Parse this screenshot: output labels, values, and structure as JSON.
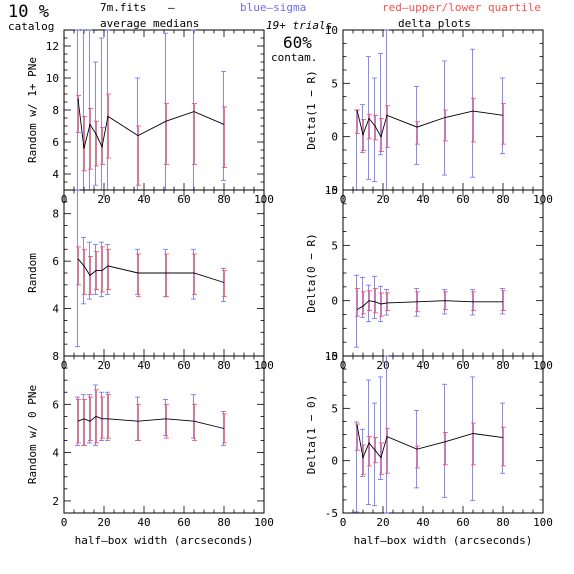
{
  "header": {
    "left_big": "10 %",
    "left_small": "catalog",
    "file": "7m.fits",
    "dash": "–",
    "avg": "average medians",
    "blue": "blue–sigma",
    "red": "red–upper/lower quartile",
    "trials": "19+ trials",
    "contam_big": "60%",
    "contam_small": "contam.",
    "delta": "delta plots"
  },
  "colors": {
    "median": "#000000",
    "sigma": "#6b6bff",
    "quartile": "#ff4d4d"
  },
  "xlabel": "half–box width (arcseconds)",
  "chart_data": [
    {
      "type": "line",
      "panel": "left-top",
      "ylabel": "Random w/ 1+ PNe",
      "xlim": [
        0,
        100
      ],
      "ylim": [
        3,
        13
      ],
      "xticks": [
        0,
        20,
        40,
        60,
        80,
        100
      ],
      "yticks": [
        4,
        6,
        8,
        10,
        12
      ],
      "show_xticklabels": true,
      "show_xlabel": false,
      "x": [
        7,
        10,
        13,
        16,
        19,
        22,
        37,
        51,
        65,
        80
      ],
      "median": [
        8.7,
        5.6,
        7.1,
        6.5,
        5.7,
        7.6,
        6.4,
        7.3,
        7.9,
        7.1
      ],
      "sigma_lo": [
        3.0,
        3.0,
        3.0,
        3.3,
        3.0,
        3.0,
        3.0,
        3.0,
        3.0,
        3.6
      ],
      "sigma_hi": [
        13.0,
        13.0,
        13.0,
        11.0,
        12.5,
        13.0,
        10.0,
        12.8,
        13.0,
        10.4
      ],
      "q_lo": [
        6.6,
        4.2,
        4.3,
        4.5,
        4.6,
        5.0,
        3.3,
        4.6,
        4.6,
        4.4
      ],
      "q_hi": [
        8.9,
        7.6,
        8.1,
        7.3,
        6.9,
        9.0,
        7.0,
        8.4,
        8.4,
        8.2
      ]
    },
    {
      "type": "line",
      "panel": "left-mid",
      "ylabel": "Random",
      "xlim": [
        0,
        100
      ],
      "ylim": [
        2,
        9
      ],
      "xticks": [
        0,
        20,
        40,
        60,
        80,
        100
      ],
      "yticks": [
        4,
        6,
        8
      ],
      "show_xticklabels": true,
      "show_xlabel": false,
      "x": [
        7,
        10,
        13,
        16,
        19,
        22,
        37,
        51,
        65,
        80
      ],
      "median": [
        6.1,
        5.8,
        5.4,
        5.6,
        5.6,
        5.8,
        5.5,
        5.5,
        5.5,
        5.1
      ],
      "sigma_lo": [
        2.4,
        4.2,
        4.4,
        4.6,
        4.5,
        4.6,
        4.6,
        4.5,
        4.4,
        4.3
      ],
      "sigma_hi": [
        9.0,
        7.0,
        6.8,
        6.7,
        6.8,
        6.7,
        6.5,
        6.5,
        6.5,
        5.7
      ],
      "q_lo": [
        5.0,
        4.6,
        4.6,
        4.8,
        4.7,
        4.8,
        4.5,
        4.5,
        4.6,
        4.5
      ],
      "q_hi": [
        6.6,
        6.5,
        6.2,
        6.4,
        6.6,
        6.5,
        6.3,
        6.3,
        6.3,
        5.6
      ]
    },
    {
      "type": "line",
      "panel": "left-bottom",
      "ylabel": "Random w/ 0 PNe",
      "xlim": [
        0,
        100
      ],
      "ylim": [
        1.5,
        8
      ],
      "xticks": [
        0,
        20,
        40,
        60,
        80,
        100
      ],
      "yticks": [
        2,
        4,
        6,
        8
      ],
      "show_xticklabels": true,
      "show_xlabel": true,
      "x": [
        7,
        10,
        13,
        16,
        19,
        22,
        37,
        51,
        65,
        80
      ],
      "median": [
        5.3,
        5.4,
        5.3,
        5.5,
        5.4,
        5.4,
        5.3,
        5.4,
        5.3,
        5.0
      ],
      "sigma_lo": [
        4.3,
        4.3,
        4.4,
        4.3,
        4.5,
        4.5,
        4.5,
        4.7,
        4.6,
        4.3
      ],
      "sigma_hi": [
        6.3,
        6.4,
        6.4,
        6.8,
        6.5,
        6.5,
        6.3,
        6.2,
        6.4,
        5.7
      ],
      "q_lo": [
        4.4,
        4.3,
        4.5,
        4.4,
        4.6,
        4.6,
        4.5,
        4.6,
        4.5,
        4.4
      ],
      "q_hi": [
        6.2,
        6.2,
        6.3,
        6.6,
        6.3,
        6.4,
        6.0,
        6.0,
        6.0,
        5.6
      ]
    },
    {
      "type": "line",
      "panel": "right-top",
      "ylabel": "Delta(1 − R)",
      "xlim": [
        0,
        100
      ],
      "ylim": [
        -5,
        10
      ],
      "xticks": [
        0,
        20,
        40,
        60,
        80,
        100
      ],
      "yticks": [
        -5,
        0,
        5,
        10
      ],
      "show_xticklabels": true,
      "show_xlabel": false,
      "x": [
        7,
        10,
        13,
        16,
        19,
        22,
        37,
        51,
        65,
        80
      ],
      "median": [
        2.5,
        0.2,
        1.7,
        1.0,
        0.0,
        2.0,
        0.9,
        1.8,
        2.4,
        2.0
      ],
      "sigma_lo": [
        -5.0,
        -1.5,
        -4.0,
        -4.2,
        -1.7,
        -5.0,
        -2.6,
        -3.6,
        -3.8,
        -1.6
      ],
      "sigma_hi": [
        2.5,
        3.0,
        7.5,
        5.5,
        7.8,
        10.0,
        4.7,
        7.1,
        8.2,
        5.5
      ],
      "q_lo": [
        0.3,
        -1.3,
        -0.2,
        -0.3,
        -1.4,
        -1.0,
        -0.7,
        -0.4,
        -0.5,
        -0.7
      ],
      "q_hi": [
        2.5,
        1.6,
        2.1,
        2.0,
        1.7,
        2.9,
        1.4,
        2.5,
        3.6,
        3.1
      ]
    },
    {
      "type": "line",
      "panel": "right-mid",
      "ylabel": "Delta(0 − R)",
      "xlim": [
        0,
        100
      ],
      "ylim": [
        -5,
        10
      ],
      "xticks": [
        0,
        20,
        40,
        60,
        80,
        100
      ],
      "yticks": [
        -5,
        0,
        5,
        10
      ],
      "show_xticklabels": true,
      "show_xlabel": false,
      "x": [
        7,
        10,
        13,
        16,
        19,
        22,
        37,
        51,
        65,
        80
      ],
      "median": [
        -0.8,
        -0.5,
        0.0,
        -0.1,
        -0.3,
        -0.2,
        -0.1,
        0.0,
        -0.1,
        -0.1
      ],
      "sigma_lo": [
        -4.2,
        -1.5,
        -1.9,
        -1.6,
        -1.9,
        -1.3,
        -1.4,
        -1.2,
        -1.3,
        -1.2
      ],
      "sigma_hi": [
        2.3,
        2.1,
        1.4,
        2.2,
        1.3,
        1.0,
        1.1,
        1.0,
        1.0,
        1.1
      ],
      "q_lo": [
        -1.4,
        -1.2,
        -0.9,
        -1.1,
        -1.4,
        -0.9,
        -1.0,
        -0.8,
        -0.9,
        -0.9
      ],
      "q_hi": [
        1.1,
        0.8,
        0.9,
        1.1,
        0.7,
        0.7,
        0.8,
        0.8,
        0.8,
        0.9
      ]
    },
    {
      "type": "line",
      "panel": "right-bottom",
      "ylabel": "Delta(1 − 0)",
      "xlim": [
        0,
        100
      ],
      "ylim": [
        -5,
        10
      ],
      "xticks": [
        0,
        20,
        40,
        60,
        80,
        100
      ],
      "yticks": [
        -5,
        0,
        5,
        10
      ],
      "show_xticklabels": true,
      "show_xlabel": true,
      "x": [
        7,
        10,
        13,
        16,
        19,
        22,
        37,
        51,
        65,
        80
      ],
      "median": [
        3.4,
        0.3,
        1.7,
        1.0,
        0.3,
        2.3,
        1.1,
        1.8,
        2.6,
        2.2
      ],
      "sigma_lo": [
        -4.9,
        -1.5,
        -4.2,
        -4.3,
        -1.8,
        -5.0,
        -2.6,
        -3.5,
        -3.8,
        -1.2
      ],
      "sigma_hi": [
        3.7,
        3.0,
        7.7,
        5.5,
        8.0,
        10.0,
        4.8,
        7.3,
        8.0,
        5.5
      ],
      "q_lo": [
        1.0,
        -1.3,
        -0.5,
        -0.2,
        -1.3,
        -1.2,
        -0.7,
        -0.4,
        -0.4,
        -0.5
      ],
      "q_hi": [
        3.5,
        1.5,
        2.3,
        2.2,
        1.7,
        3.1,
        1.4,
        2.7,
        3.6,
        3.2
      ]
    }
  ]
}
